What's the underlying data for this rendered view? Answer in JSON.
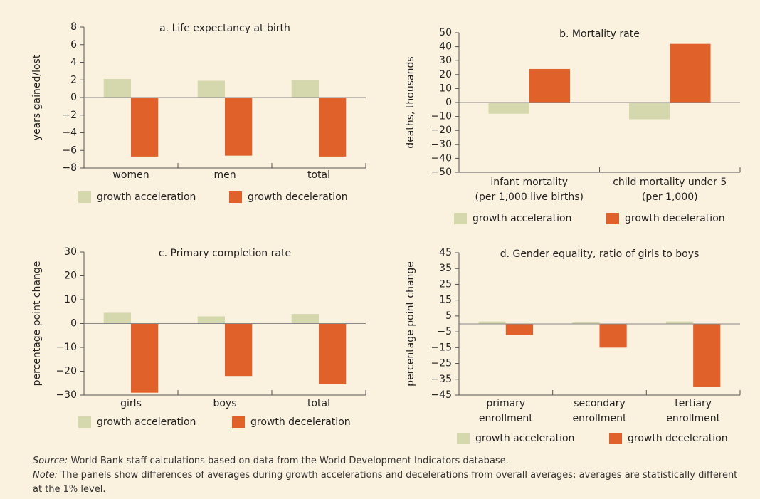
{
  "chart_data": [
    {
      "type": "bar",
      "title": "a.  Life expectancy at birth",
      "y_label": "years gained/lost",
      "categories": [
        [
          "women"
        ],
        [
          "men"
        ],
        [
          "total"
        ]
      ],
      "series": [
        {
          "name": "growth acceleration",
          "color": "#d5d8ad",
          "values": [
            2.1,
            1.9,
            2.0
          ]
        },
        {
          "name": "growth deceleration",
          "color": "#e0612a",
          "values": [
            -6.7,
            -6.6,
            -6.7
          ]
        }
      ],
      "ylim": [
        -8,
        8
      ],
      "yticks": [
        8,
        6,
        4,
        2,
        0,
        {
          "value": -2,
          "label": "−2"
        },
        {
          "value": -4,
          "label": "−4"
        },
        {
          "value": -6,
          "label": "−6"
        },
        {
          "value": -8,
          "label": "−8"
        }
      ]
    },
    {
      "type": "bar",
      "title": "b.  Mortality rate",
      "y_label": "deaths, thousands",
      "categories": [
        [
          "infant mortality",
          "(per 1,000 live births)"
        ],
        [
          "child mortality under 5",
          "(per 1,000)"
        ]
      ],
      "series": [
        {
          "name": "growth acceleration",
          "color": "#d5d8ad",
          "values": [
            -8,
            -12
          ]
        },
        {
          "name": "growth deceleration",
          "color": "#e0612a",
          "values": [
            24,
            42
          ]
        }
      ],
      "ylim": [
        -50,
        50
      ],
      "yticks": [
        50,
        40,
        30,
        20,
        10,
        0,
        {
          "value": -10,
          "label": "−10"
        },
        {
          "value": -20,
          "label": "−20"
        },
        {
          "value": -30,
          "label": "−30"
        },
        {
          "value": -40,
          "label": "−40"
        },
        {
          "value": -50,
          "label": "−50"
        }
      ]
    },
    {
      "type": "bar",
      "title": "c.  Primary completion rate",
      "y_label": "percentage point change",
      "categories": [
        [
          "girls"
        ],
        [
          "boys"
        ],
        [
          "total"
        ]
      ],
      "series": [
        {
          "name": "growth acceleration",
          "color": "#d5d8ad",
          "values": [
            4.5,
            3,
            4
          ]
        },
        {
          "name": "growth deceleration",
          "color": "#e0612a",
          "values": [
            -29,
            -22,
            -25.5
          ]
        }
      ],
      "ylim": [
        -30,
        30
      ],
      "yticks": [
        30,
        20,
        10,
        0,
        {
          "value": -10,
          "label": "−10"
        },
        {
          "value": -20,
          "label": "−20"
        },
        {
          "value": -30,
          "label": "−30"
        }
      ]
    },
    {
      "type": "bar",
      "title": "d.  Gender equality, ratio of girls to boys",
      "y_label": "percentage point change",
      "categories": [
        [
          "primary",
          "enrollment"
        ],
        [
          "secondary",
          "enrollment"
        ],
        [
          "tertiary",
          "enrollment"
        ]
      ],
      "series": [
        {
          "name": "growth acceleration",
          "color": "#d5d8ad",
          "values": [
            1.5,
            1,
            1.5
          ]
        },
        {
          "name": "growth deceleration",
          "color": "#e0612a",
          "values": [
            -7,
            -15,
            -40
          ]
        }
      ],
      "ylim": [
        -45,
        45
      ],
      "yticks": [
        45,
        35,
        25,
        15,
        5,
        {
          "value": -5,
          "label": "−5"
        },
        {
          "value": -15,
          "label": "−15"
        },
        {
          "value": -25,
          "label": "−25"
        },
        {
          "value": -35,
          "label": "−35"
        },
        {
          "value": -45,
          "label": "−45"
        }
      ]
    }
  ],
  "source": {
    "label": "Source:",
    "text": " World Bank staff calculations based on data from the World Development Indicators database."
  },
  "note": {
    "label": "Note:",
    "text": " The panels show differences of averages during growth accelerations and decelerations from overall averages; averages are statistically different at the 1% level."
  }
}
